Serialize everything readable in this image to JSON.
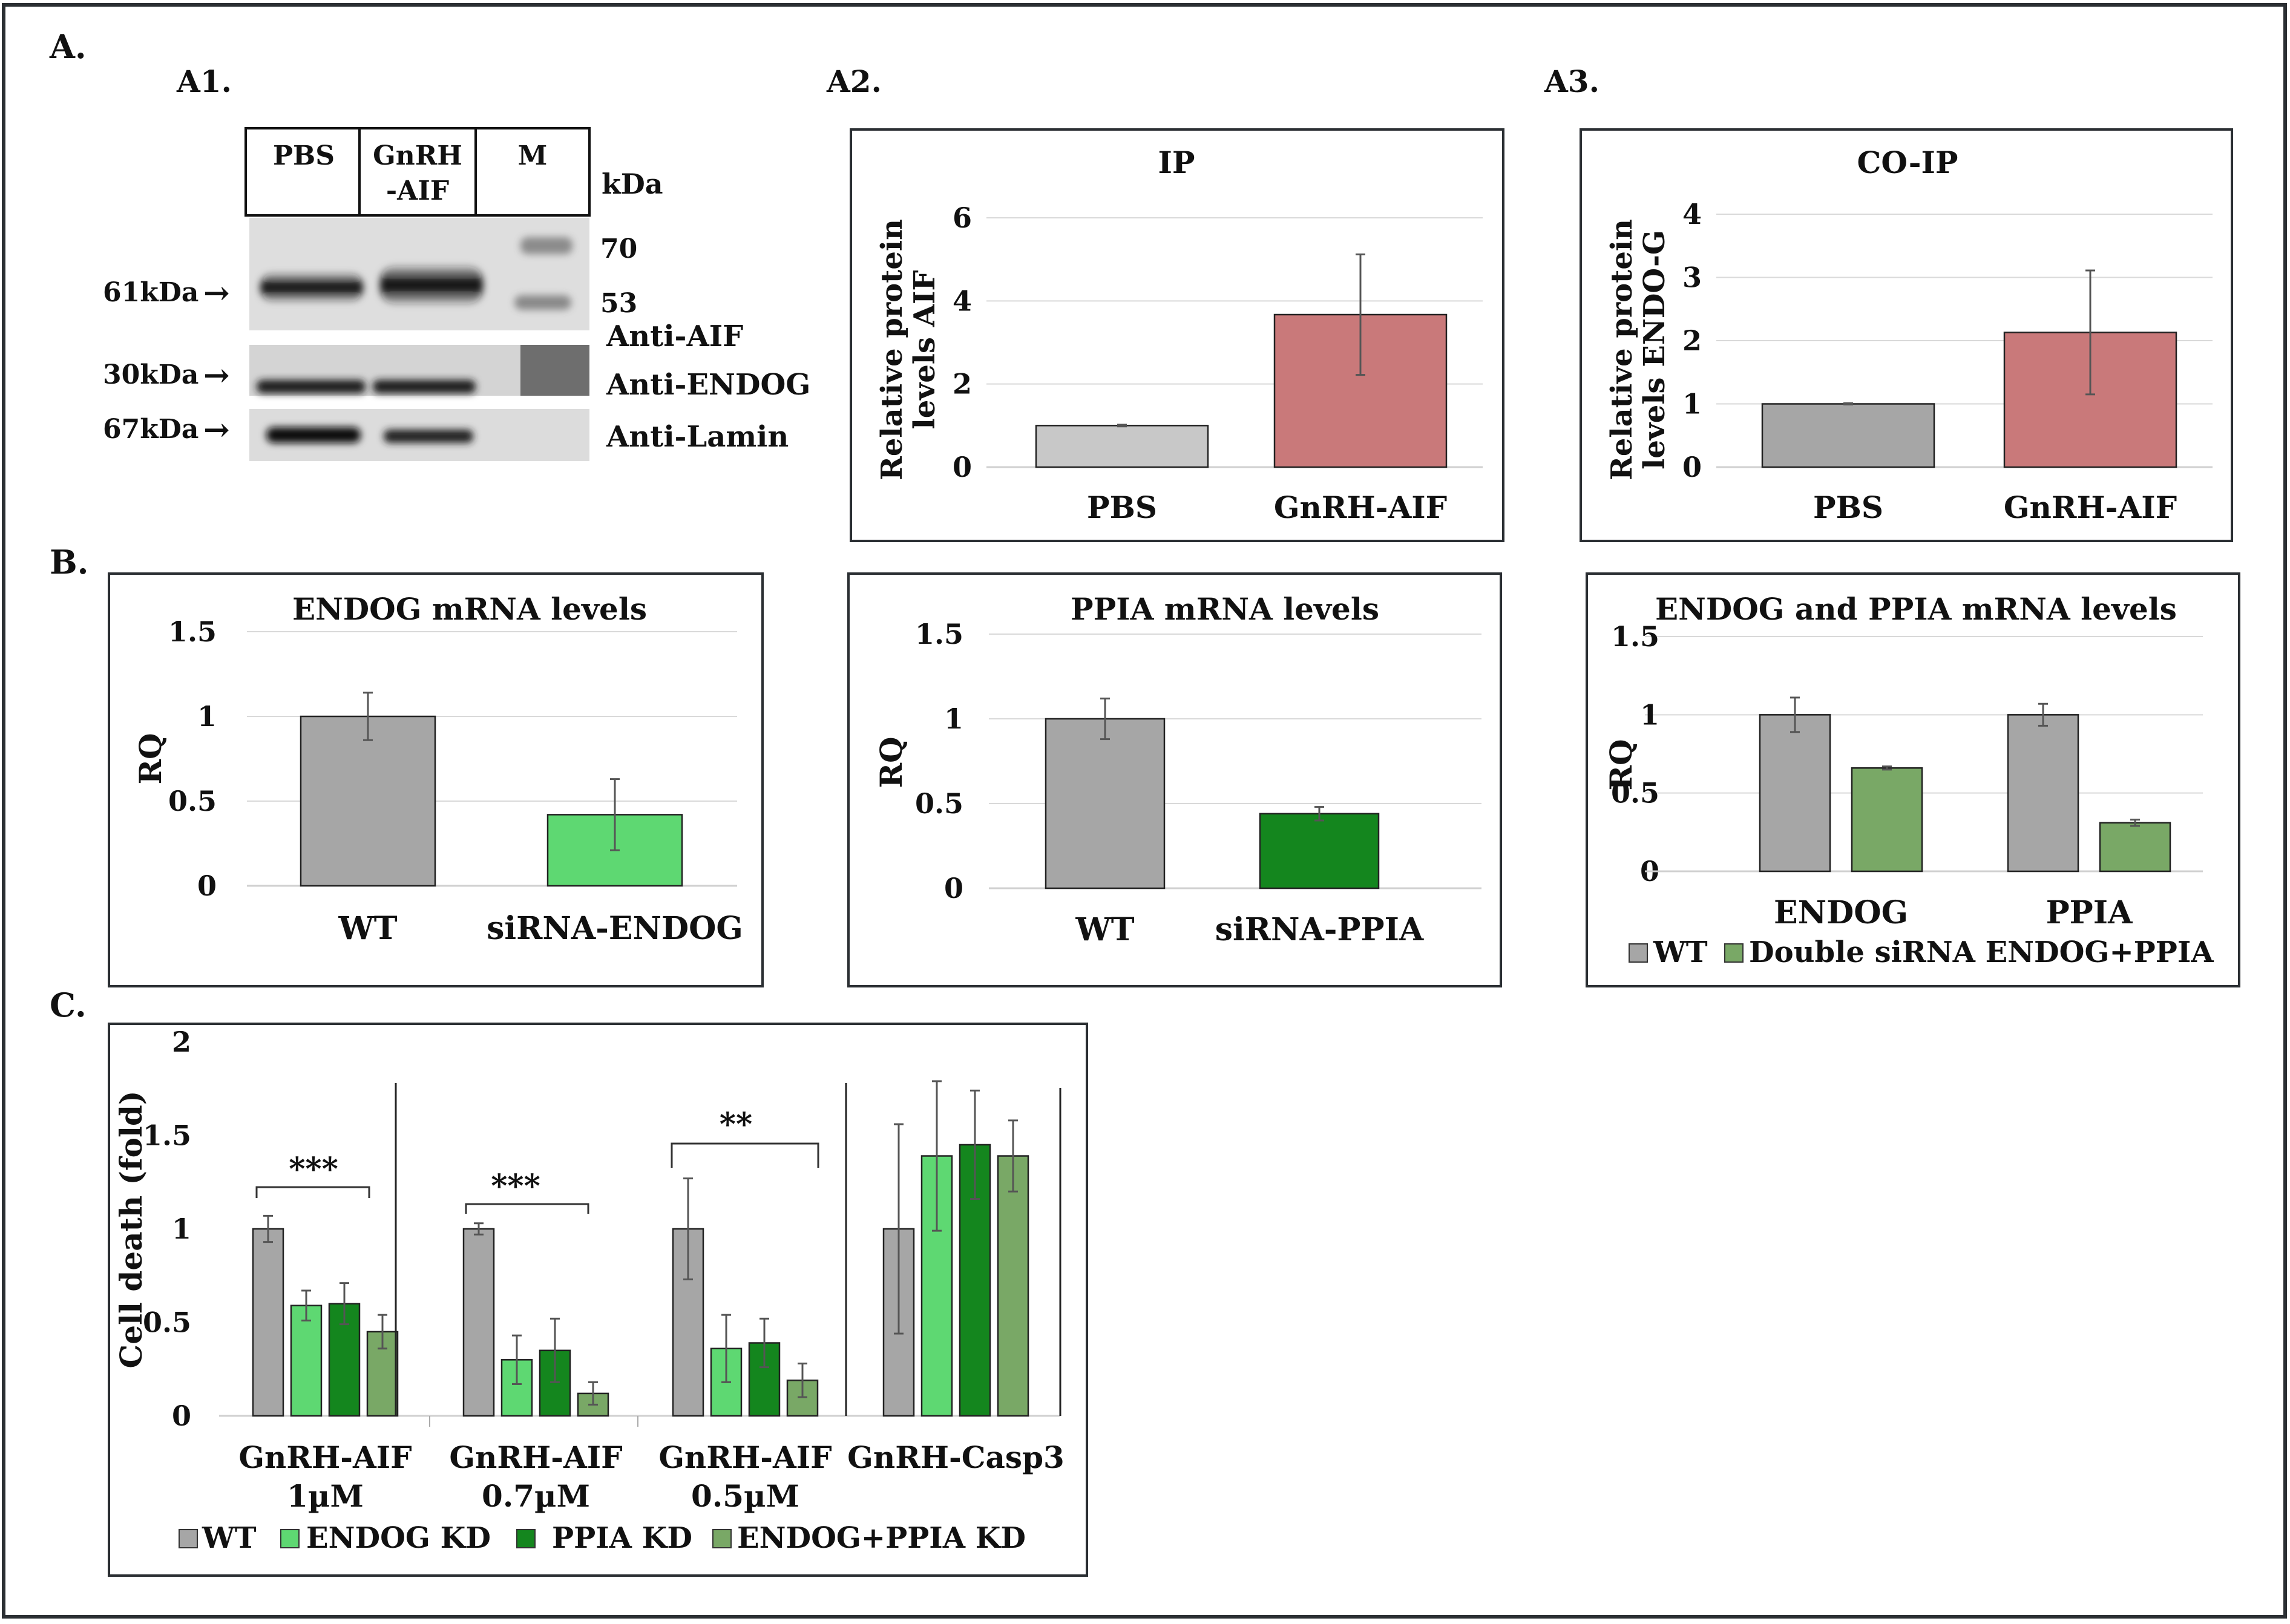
{
  "section_labels": {
    "a": "A.",
    "b": "B.",
    "c": "C."
  },
  "panel_labels": {
    "a1": "A1.",
    "a2": "A2.",
    "a3": "A3."
  },
  "blot": {
    "lanes": [
      "PBS",
      "GnRH",
      "-AIF",
      "M"
    ],
    "kda_unit": "kDa",
    "marker_labels": [
      "70",
      "53"
    ],
    "size_labels": [
      "61kDa",
      "30kDa",
      "67kDa"
    ],
    "antibodies": [
      "Anti-AIF",
      "Anti-ENDOG",
      "Anti-Lamin"
    ],
    "arrow": "→"
  },
  "legend_b3": {
    "wt": "WT",
    "double": "Double siRNA ENDOG+PPIA"
  },
  "legend_c": {
    "wt": "WT",
    "endog_kd": "ENDOG KD",
    "ppia_kd": "PPIA KD",
    "both_kd": "ENDOG+PPIA KD"
  },
  "significance": [
    "***",
    "***",
    "**"
  ],
  "colors": {
    "gray": "#a6a6a6",
    "light_gray": "#c8c8c8",
    "red": "#c9797a",
    "light_green": "#5ed872",
    "dark_green": "#14861e",
    "sage_green": "#79a866",
    "frame": "#2b2f33"
  },
  "chart_data": [
    {
      "id": "A2",
      "type": "bar",
      "title": "IP",
      "ylabel_lines": [
        "Relative protein",
        "levels AIF"
      ],
      "categories": [
        "PBS",
        "GnRH-AIF"
      ],
      "values": [
        1.0,
        3.67
      ],
      "errors": [
        0.02,
        1.45
      ],
      "ylim": [
        0,
        6
      ],
      "yticks": [
        "0",
        "2",
        "4",
        "6"
      ],
      "grid": true
    },
    {
      "id": "A3",
      "type": "bar",
      "title": "CO-IP",
      "ylabel_lines": [
        "Relative protein",
        "levels ENDO-G"
      ],
      "categories": [
        "PBS",
        "GnRH-AIF"
      ],
      "values": [
        1.0,
        2.13
      ],
      "errors": [
        0.01,
        0.98
      ],
      "ylim": [
        0,
        4
      ],
      "yticks": [
        "0",
        "1",
        "2",
        "3",
        "4"
      ],
      "grid": true
    },
    {
      "id": "B1",
      "type": "bar",
      "title": "ENDOG mRNA levels",
      "ylabel": "RQ",
      "categories": [
        "WT",
        "siRNA-ENDOG"
      ],
      "values": [
        1.0,
        0.42
      ],
      "errors": [
        0.14,
        0.21
      ],
      "ylim": [
        0,
        1.5
      ],
      "yticks": [
        "0",
        "0.5",
        "1",
        "1.5"
      ],
      "grid": true
    },
    {
      "id": "B2",
      "type": "bar",
      "title": "PPIA mRNA levels",
      "ylabel": "RQ",
      "categories": [
        "WT",
        "siRNA-PPIA"
      ],
      "values": [
        1.0,
        0.44
      ],
      "errors": [
        0.12,
        0.04
      ],
      "ylim": [
        0,
        1.5
      ],
      "yticks": [
        "0",
        "0.5",
        "1",
        "1.5"
      ],
      "grid": true
    },
    {
      "id": "B3",
      "type": "bar",
      "title": "ENDOG and PPIA mRNA levels",
      "ylabel": "RQ",
      "categories": [
        "ENDOG",
        "PPIA"
      ],
      "series": [
        {
          "name": "WT",
          "values": [
            1.0,
            1.0
          ],
          "errors": [
            0.11,
            0.07
          ]
        },
        {
          "name": "Double siRNA ENDOG+PPIA",
          "values": [
            0.66,
            0.31
          ],
          "errors": [
            0.01,
            0.02
          ]
        }
      ],
      "ylim": [
        0,
        1.5
      ],
      "yticks": [
        "0",
        "0.5",
        "1",
        "1.5"
      ],
      "grid": true,
      "legend": "bottom"
    },
    {
      "id": "C",
      "type": "bar",
      "title": "",
      "ylabel": "Cell death (fold)",
      "categories": [
        [
          "GnRH-AIF",
          "1µM"
        ],
        [
          "GnRH-AIF",
          "0.7µM"
        ],
        [
          "GnRH-AIF",
          "0.5µM"
        ],
        [
          "GnRH-Casp3"
        ]
      ],
      "series": [
        {
          "name": "WT",
          "values": [
            1.0,
            1.0,
            1.0,
            1.0
          ],
          "errors": [
            0.07,
            0.03,
            0.27,
            0.56
          ]
        },
        {
          "name": "ENDOG KD",
          "values": [
            0.59,
            0.3,
            0.36,
            1.39
          ],
          "errors": [
            0.08,
            0.13,
            0.18,
            0.4
          ]
        },
        {
          "name": "PPIA KD",
          "values": [
            0.6,
            0.35,
            0.39,
            1.45
          ],
          "errors": [
            0.11,
            0.17,
            0.13,
            0.29
          ]
        },
        {
          "name": "ENDOG+PPIA KD",
          "values": [
            0.45,
            0.12,
            0.19,
            1.39
          ],
          "errors": [
            0.09,
            0.06,
            0.09,
            0.19
          ]
        }
      ],
      "ylim": [
        0,
        2
      ],
      "yticks": [
        "0",
        "0.5",
        "1",
        "1.5",
        "2"
      ],
      "grid": false,
      "legend": "bottom"
    }
  ]
}
